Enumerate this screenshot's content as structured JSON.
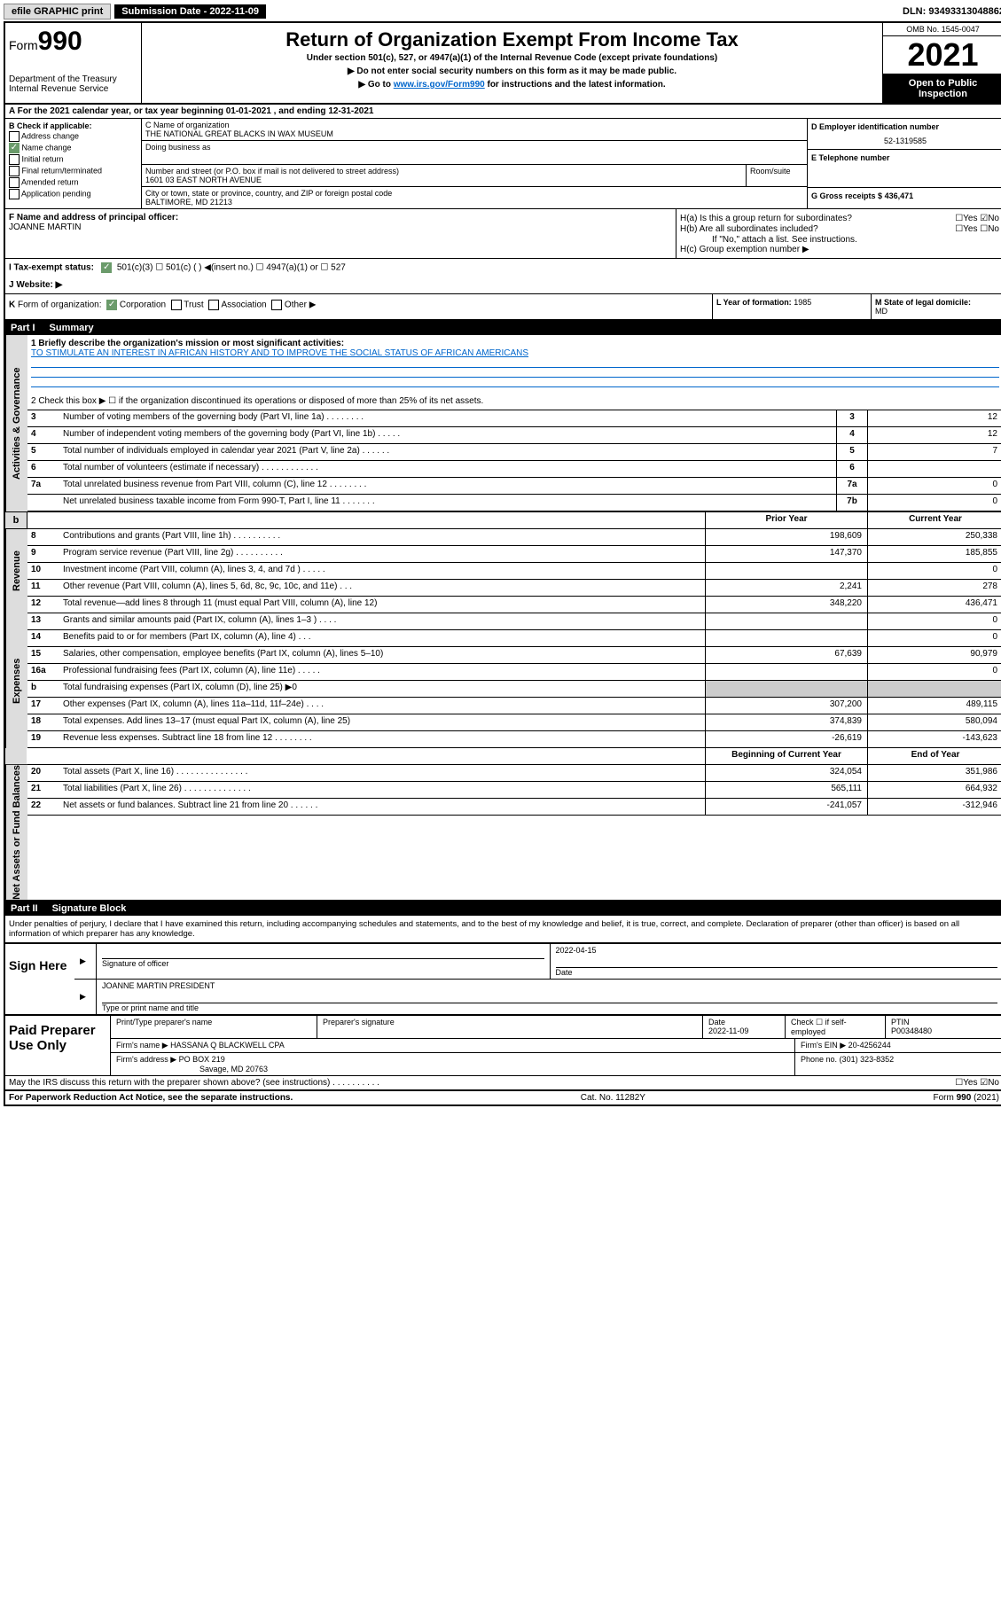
{
  "topbar": {
    "efile": "efile GRAPHIC print",
    "submission": "Submission Date - 2022-11-09",
    "dln": "DLN: 93493313048862"
  },
  "header": {
    "form_prefix": "Form",
    "form_num": "990",
    "dept": "Department of the Treasury\nInternal Revenue Service",
    "title": "Return of Organization Exempt From Income Tax",
    "subtitle": "Under section 501(c), 527, or 4947(a)(1) of the Internal Revenue Code (except private foundations)",
    "note1": "▶ Do not enter social security numbers on this form as it may be made public.",
    "note2_pre": "▶ Go to ",
    "note2_link": "www.irs.gov/Form990",
    "note2_post": " for instructions and the latest information.",
    "omb": "OMB No. 1545-0047",
    "year": "2021",
    "open": "Open to Public Inspection"
  },
  "row_a": "A For the 2021 calendar year, or tax year beginning 01-01-2021   , and ending 12-31-2021",
  "box_b": {
    "label": "B Check if applicable:",
    "items": [
      "Address change",
      "Name change",
      "Initial return",
      "Final return/terminated",
      "Amended return",
      "Application pending"
    ],
    "checked_idx": 1
  },
  "box_c": {
    "name_label": "C Name of organization",
    "name": "THE NATIONAL GREAT BLACKS IN WAX MUSEUM",
    "dba_label": "Doing business as",
    "street_label": "Number and street (or P.O. box if mail is not delivered to street address)",
    "room_label": "Room/suite",
    "street": "1601 03 EAST NORTH AVENUE",
    "city_label": "City or town, state or province, country, and ZIP or foreign postal code",
    "city": "BALTIMORE, MD  21213"
  },
  "box_d": {
    "label": "D Employer identification number",
    "val": "52-1319585"
  },
  "box_e": {
    "label": "E Telephone number",
    "val": ""
  },
  "box_g": {
    "label": "G Gross receipts $",
    "val": "436,471"
  },
  "box_f": {
    "label": "F Name and address of principal officer:",
    "name": "JOANNE MARTIN"
  },
  "box_h": {
    "ha": "H(a)  Is this a group return for subordinates?",
    "ha_ans": "☐Yes ☑No",
    "hb": "H(b)  Are all subordinates included?",
    "hb_ans": "☐Yes ☐No",
    "hb_note": "If \"No,\" attach a list. See instructions.",
    "hc": "H(c)  Group exemption number ▶"
  },
  "row_i": {
    "label": "I    Tax-exempt status:",
    "opts": "501(c)(3)      ☐  501(c) (  ) ◀(insert no.)      ☐  4947(a)(1) or   ☐  527"
  },
  "row_j": "J    Website: ▶",
  "row_k": "K Form of organization:  ☑ Corporation  ☐ Trust  ☐ Association  ☐ Other ▶",
  "row_l": {
    "label": "L Year of formation:",
    "val": "1985"
  },
  "row_m": {
    "label": "M State of legal domicile:",
    "val": "MD"
  },
  "part1": {
    "header_num": "Part I",
    "header_title": "Summary",
    "line1_label": "1  Briefly describe the organization's mission or most significant activities:",
    "line1_text": "TO STIMULATE AN INTEREST IN AFRICAN HISTORY AND TO IMPROVE THE SOCIAL STATUS OF AFRICAN AMERICANS",
    "line2": "2   Check this box ▶ ☐  if the organization discontinued its operations or disposed of more than 25% of its net assets."
  },
  "side_labels": {
    "gov": "Activities & Governance",
    "rev": "Revenue",
    "exp": "Expenses",
    "net": "Net Assets or Fund Balances"
  },
  "gov_lines": [
    {
      "n": "3",
      "d": "Number of voting members of the governing body (Part VI, line 1a)  .    .    .    .    .    .    .    .",
      "bn": "3",
      "v": "12"
    },
    {
      "n": "4",
      "d": "Number of independent voting members of the governing body (Part VI, line 1b)  .    .    .    .    .",
      "bn": "4",
      "v": "12"
    },
    {
      "n": "5",
      "d": "Total number of individuals employed in calendar year 2021 (Part V, line 2a)  .    .    .    .    .    .",
      "bn": "5",
      "v": "7"
    },
    {
      "n": "6",
      "d": "Total number of volunteers (estimate if necessary)  .    .    .    .    .    .    .    .    .    .    .    .",
      "bn": "6",
      "v": ""
    },
    {
      "n": "7a",
      "d": "Total unrelated business revenue from Part VIII, column (C), line 12  .    .    .    .    .    .    .    .",
      "bn": "7a",
      "v": "0"
    },
    {
      "n": "",
      "d": "Net unrelated business taxable income from Form 990-T, Part I, line 11  .    .    .    .    .    .    .",
      "bn": "7b",
      "v": "0"
    }
  ],
  "col_headers": {
    "b": "b",
    "prior": "Prior Year",
    "current": "Current Year"
  },
  "rev_lines": [
    {
      "n": "8",
      "d": "Contributions and grants (Part VIII, line 1h)  .    .    .    .    .    .    .    .    .    .",
      "p": "198,609",
      "c": "250,338"
    },
    {
      "n": "9",
      "d": "Program service revenue (Part VIII, line 2g)  .    .    .    .    .    .    .    .    .    .",
      "p": "147,370",
      "c": "185,855"
    },
    {
      "n": "10",
      "d": "Investment income (Part VIII, column (A), lines 3, 4, and 7d )  .    .    .    .    .",
      "p": "",
      "c": "0"
    },
    {
      "n": "11",
      "d": "Other revenue (Part VIII, column (A), lines 5, 6d, 8c, 9c, 10c, and 11e)  .    .    .",
      "p": "2,241",
      "c": "278"
    },
    {
      "n": "12",
      "d": "Total revenue—add lines 8 through 11 (must equal Part VIII, column (A), line 12)",
      "p": "348,220",
      "c": "436,471"
    }
  ],
  "exp_lines": [
    {
      "n": "13",
      "d": "Grants and similar amounts paid (Part IX, column (A), lines 1–3 )  .    .    .    .",
      "p": "",
      "c": "0"
    },
    {
      "n": "14",
      "d": "Benefits paid to or for members (Part IX, column (A), line 4)  .    .    .",
      "p": "",
      "c": "0"
    },
    {
      "n": "15",
      "d": "Salaries, other compensation, employee benefits (Part IX, column (A), lines 5–10)",
      "p": "67,639",
      "c": "90,979"
    },
    {
      "n": "16a",
      "d": "Professional fundraising fees (Part IX, column (A), line 11e)  .    .    .    .    .",
      "p": "",
      "c": "0"
    },
    {
      "n": "b",
      "d": "Total fundraising expenses (Part IX, column (D), line 25) ▶0",
      "p": "GREY",
      "c": "GREY"
    },
    {
      "n": "17",
      "d": "Other expenses (Part IX, column (A), lines 11a–11d, 11f–24e)  .    .    .    .",
      "p": "307,200",
      "c": "489,115"
    },
    {
      "n": "18",
      "d": "Total expenses. Add lines 13–17 (must equal Part IX, column (A), line 25)",
      "p": "374,839",
      "c": "580,094"
    },
    {
      "n": "19",
      "d": "Revenue less expenses. Subtract line 18 from line 12  .    .    .    .    .    .    .    .",
      "p": "-26,619",
      "c": "-143,623"
    }
  ],
  "net_header": {
    "prior": "Beginning of Current Year",
    "current": "End of Year"
  },
  "net_lines": [
    {
      "n": "20",
      "d": "Total assets (Part X, line 16)  .    .    .    .    .    .    .    .    .    .    .    .    .    .    .",
      "p": "324,054",
      "c": "351,986"
    },
    {
      "n": "21",
      "d": "Total liabilities (Part X, line 26)  .    .    .    .    .    .    .    .    .    .    .    .    .    .",
      "p": "565,111",
      "c": "664,932"
    },
    {
      "n": "22",
      "d": "Net assets or fund balances. Subtract line 21 from line 20  .    .    .    .    .    .",
      "p": "-241,057",
      "c": "-312,946"
    }
  ],
  "part2": {
    "header_num": "Part II",
    "header_title": "Signature Block",
    "decl": "Under penalties of perjury, I declare that I have examined this return, including accompanying schedules and statements, and to the best of my knowledge and belief, it is true, correct, and complete. Declaration of preparer (other than officer) is based on all information of which preparer has any knowledge."
  },
  "sign": {
    "label": "Sign Here",
    "sig_label": "Signature of officer",
    "date_label": "Date",
    "date": "2022-04-15",
    "name": "JOANNE MARTIN  PRESIDENT",
    "name_label": "Type or print name and title"
  },
  "paid": {
    "label": "Paid Preparer Use Only",
    "h1": "Print/Type preparer's name",
    "h2": "Preparer's signature",
    "h3": "Date",
    "h3v": "2022-11-09",
    "h4": "Check ☐ if self-employed",
    "h5": "PTIN",
    "h5v": "P00348480",
    "firm_name_l": "Firm's name    ▶",
    "firm_name": "HASSANA Q BLACKWELL CPA",
    "firm_ein_l": "Firm's EIN ▶",
    "firm_ein": "20-4256244",
    "firm_addr_l": "Firm's address ▶",
    "firm_addr1": "PO BOX 219",
    "firm_addr2": "Savage, MD  20763",
    "phone_l": "Phone no.",
    "phone": "(301) 323-8352"
  },
  "irs_discuss": {
    "text": "May the IRS discuss this return with the preparer shown above? (see instructions)  .    .    .    .    .    .    .    .    .    .",
    "ans": "☐Yes ☑No"
  },
  "footer": {
    "left": "For Paperwork Reduction Act Notice, see the separate instructions.",
    "center": "Cat. No. 11282Y",
    "right": "Form 990 (2021)"
  }
}
